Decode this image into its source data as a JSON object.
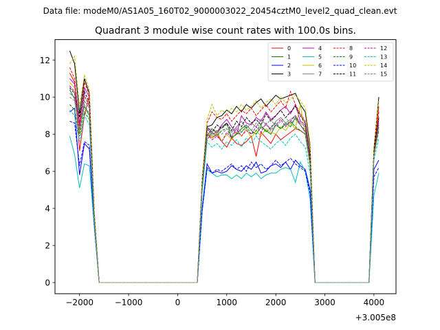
{
  "figure": {
    "suptitle": "Data file: modeM0/AS1A05_160T02_9000003022_20454cztM0_level2_quad_clean.evt",
    "offset_label": "+3.005e8"
  },
  "chart_data": {
    "type": "line",
    "title": "Quadrant 3 module wise count rates with 100.0s bins.",
    "xlabel": "",
    "ylabel": "",
    "x_offset": 300500000,
    "xlim": [
      -2500,
      4450
    ],
    "ylim": [
      -0.6,
      13.1
    ],
    "x_ticks": [
      -2000,
      -1000,
      0,
      1000,
      2000,
      3000,
      4000
    ],
    "x_tick_labels": [
      "−2000",
      "−1000",
      "0",
      "1000",
      "2000",
      "3000",
      "4000"
    ],
    "y_ticks": [
      0,
      2,
      4,
      6,
      8,
      10,
      12
    ],
    "y_tick_labels": [
      "0",
      "2",
      "4",
      "6",
      "8",
      "10",
      "12"
    ],
    "grid": false,
    "legend_position": "top-right",
    "legend_columns": 4,
    "x": [
      -2200,
      -2100,
      -2000,
      -1900,
      -1800,
      -1700,
      -1600,
      -1500,
      -1400,
      -1300,
      -1200,
      -1100,
      -1000,
      -900,
      -800,
      -700,
      -600,
      -500,
      -400,
      -300,
      -200,
      -100,
      0,
      100,
      200,
      300,
      400,
      500,
      600,
      700,
      800,
      900,
      1000,
      1100,
      1200,
      1300,
      1400,
      1500,
      1600,
      1700,
      1800,
      1900,
      2000,
      2100,
      2200,
      2300,
      2400,
      2500,
      2600,
      2700,
      2800,
      2900,
      3000,
      3100,
      3200,
      3300,
      3400,
      3500,
      3600,
      3700,
      3800,
      3900,
      4000,
      4100
    ],
    "series": [
      {
        "name": "0",
        "color": "#ff0000",
        "dash": "solid",
        "values": [
          11.3,
          10.8,
          7.1,
          9.0,
          10.1,
          3.5,
          0,
          0,
          0,
          0,
          0,
          0,
          0,
          0,
          0,
          0,
          0,
          0,
          0,
          0,
          0,
          0,
          0,
          0,
          0,
          0,
          0,
          5.2,
          8.0,
          7.8,
          8.0,
          7.6,
          7.3,
          7.8,
          7.5,
          7.4,
          7.6,
          7.9,
          6.8,
          8.1,
          7.8,
          7.5,
          8.0,
          7.7,
          7.9,
          8.1,
          8.3,
          8.2,
          8.0,
          6.5,
          0,
          0,
          0,
          0,
          0,
          0,
          0,
          0,
          0,
          0,
          0,
          0,
          7.0,
          9.5
        ]
      },
      {
        "name": "1",
        "color": "#008000",
        "dash": "solid",
        "values": [
          10.4,
          9.9,
          8.2,
          9.5,
          9.0,
          3.6,
          0,
          0,
          0,
          0,
          0,
          0,
          0,
          0,
          0,
          0,
          0,
          0,
          0,
          0,
          0,
          0,
          0,
          0,
          0,
          0,
          0,
          5.3,
          7.9,
          8.3,
          8.1,
          8.4,
          8.6,
          7.8,
          8.0,
          8.3,
          8.5,
          8.2,
          8.0,
          8.4,
          8.2,
          8.0,
          8.5,
          8.3,
          8.6,
          8.4,
          8.9,
          8.5,
          8.1,
          6.4,
          0,
          0,
          0,
          0,
          0,
          0,
          0,
          0,
          0,
          0,
          0,
          0,
          7.1,
          8.4
        ]
      },
      {
        "name": "2",
        "color": "#0000ff",
        "dash": "solid",
        "values": [
          9.2,
          9.4,
          5.8,
          7.5,
          7.2,
          3.2,
          0,
          0,
          0,
          0,
          0,
          0,
          0,
          0,
          0,
          0,
          0,
          0,
          0,
          0,
          0,
          0,
          0,
          0,
          0,
          0,
          0,
          4.0,
          6.4,
          5.9,
          6.0,
          5.9,
          6.0,
          6.3,
          6.1,
          6.0,
          6.3,
          6.1,
          6.5,
          5.9,
          6.0,
          6.3,
          6.4,
          6.2,
          6.5,
          6.1,
          6.6,
          6.3,
          6.1,
          5.0,
          0,
          0,
          0,
          0,
          0,
          0,
          0,
          0,
          0,
          0,
          0,
          0,
          6.1,
          6.6
        ]
      },
      {
        "name": "3",
        "color": "#000000",
        "dash": "solid",
        "values": [
          12.5,
          11.8,
          9.1,
          11.0,
          10.2,
          3.8,
          0,
          0,
          0,
          0,
          0,
          0,
          0,
          0,
          0,
          0,
          0,
          0,
          0,
          0,
          0,
          0,
          0,
          0,
          0,
          0,
          0,
          5.6,
          8.4,
          8.5,
          8.9,
          9.0,
          9.3,
          9.1,
          9.5,
          9.2,
          9.6,
          9.4,
          9.7,
          9.9,
          9.5,
          9.8,
          10.1,
          9.9,
          10.0,
          10.1,
          10.2,
          9.6,
          9.2,
          7.3,
          0,
          0,
          0,
          0,
          0,
          0,
          0,
          0,
          0,
          0,
          0,
          0,
          7.2,
          10.0
        ]
      },
      {
        "name": "4",
        "color": "#bf00bf",
        "dash": "solid",
        "values": [
          11.0,
          10.7,
          8.6,
          10.5,
          10.0,
          3.6,
          0,
          0,
          0,
          0,
          0,
          0,
          0,
          0,
          0,
          0,
          0,
          0,
          0,
          0,
          0,
          0,
          0,
          0,
          0,
          0,
          0,
          5.4,
          8.3,
          8.0,
          8.1,
          8.5,
          8.8,
          8.4,
          8.0,
          9.0,
          8.6,
          8.5,
          8.9,
          8.7,
          9.2,
          8.8,
          9.0,
          9.3,
          9.5,
          9.1,
          9.6,
          8.7,
          8.5,
          6.7,
          0,
          0,
          0,
          0,
          0,
          0,
          0,
          0,
          0,
          0,
          0,
          0,
          7.0,
          8.8
        ]
      },
      {
        "name": "5",
        "color": "#00bfbf",
        "dash": "solid",
        "values": [
          7.9,
          6.9,
          5.1,
          6.4,
          6.3,
          3.0,
          0,
          0,
          0,
          0,
          0,
          0,
          0,
          0,
          0,
          0,
          0,
          0,
          0,
          0,
          0,
          0,
          0,
          0,
          0,
          0,
          0,
          3.8,
          6.1,
          5.9,
          5.7,
          5.8,
          5.8,
          5.6,
          5.8,
          5.6,
          5.9,
          5.7,
          5.9,
          5.6,
          5.8,
          5.9,
          5.9,
          6.1,
          6.2,
          6.1,
          5.4,
          6.5,
          6.0,
          4.5,
          0,
          0,
          0,
          0,
          0,
          0,
          0,
          0,
          0,
          0,
          0,
          0,
          4.7,
          5.9
        ]
      },
      {
        "name": "6",
        "color": "#bfbf00",
        "dash": "solid",
        "values": [
          10.8,
          10.5,
          8.0,
          10.0,
          9.6,
          3.4,
          0,
          0,
          0,
          0,
          0,
          0,
          0,
          0,
          0,
          0,
          0,
          0,
          0,
          0,
          0,
          0,
          0,
          0,
          0,
          0,
          0,
          5.2,
          8.1,
          7.8,
          8.2,
          7.6,
          8.0,
          7.7,
          8.1,
          7.9,
          8.3,
          7.8,
          8.2,
          7.9,
          8.3,
          8.1,
          8.0,
          8.4,
          8.2,
          8.6,
          8.3,
          9.6,
          8.0,
          6.3,
          0,
          0,
          0,
          0,
          0,
          0,
          0,
          0,
          0,
          0,
          0,
          0,
          6.8,
          8.3
        ]
      },
      {
        "name": "7",
        "color": "#808080",
        "dash": "solid",
        "values": [
          10.2,
          10.0,
          8.4,
          9.8,
          9.4,
          3.5,
          0,
          0,
          0,
          0,
          0,
          0,
          0,
          0,
          0,
          0,
          0,
          0,
          0,
          0,
          0,
          0,
          0,
          0,
          0,
          0,
          0,
          5.3,
          8.2,
          8.3,
          8.0,
          8.4,
          8.5,
          8.1,
          8.4,
          8.7,
          8.3,
          8.6,
          8.4,
          8.8,
          8.5,
          8.3,
          8.7,
          8.9,
          8.6,
          8.8,
          9.0,
          8.6,
          8.4,
          6.6,
          0,
          0,
          0,
          0,
          0,
          0,
          0,
          0,
          0,
          0,
          0,
          0,
          7.0,
          8.6
        ]
      },
      {
        "name": "8",
        "color": "#ff0000",
        "dash": "dashed",
        "values": [
          11.6,
          11.0,
          8.5,
          10.8,
          10.1,
          3.7,
          0,
          0,
          0,
          0,
          0,
          0,
          0,
          0,
          0,
          0,
          0,
          0,
          0,
          0,
          0,
          0,
          0,
          0,
          0,
          0,
          0,
          5.5,
          8.6,
          9.2,
          8.9,
          8.8,
          9.1,
          8.7,
          9.0,
          9.3,
          9.1,
          9.4,
          9.0,
          9.3,
          9.6,
          9.2,
          9.5,
          9.8,
          9.4,
          10.3,
          9.6,
          9.1,
          8.7,
          6.9,
          0,
          0,
          0,
          0,
          0,
          0,
          0,
          0,
          0,
          0,
          0,
          0,
          7.1,
          9.2
        ]
      },
      {
        "name": "9",
        "color": "#008000",
        "dash": "dashed",
        "values": [
          9.6,
          9.3,
          7.9,
          9.2,
          8.8,
          3.3,
          0,
          0,
          0,
          0,
          0,
          0,
          0,
          0,
          0,
          0,
          0,
          0,
          0,
          0,
          0,
          0,
          0,
          0,
          0,
          0,
          0,
          5.0,
          7.7,
          8.1,
          7.9,
          8.2,
          8.3,
          7.8,
          8.0,
          8.1,
          8.4,
          8.0,
          8.2,
          8.5,
          8.1,
          8.4,
          8.6,
          8.3,
          8.5,
          8.7,
          8.4,
          8.2,
          8.0,
          6.3,
          0,
          0,
          0,
          0,
          0,
          0,
          0,
          0,
          0,
          0,
          0,
          0,
          6.9,
          8.2
        ]
      },
      {
        "name": "10",
        "color": "#0000ff",
        "dash": "dashed",
        "values": [
          8.7,
          8.6,
          6.3,
          7.6,
          7.4,
          3.1,
          0,
          0,
          0,
          0,
          0,
          0,
          0,
          0,
          0,
          0,
          0,
          0,
          0,
          0,
          0,
          0,
          0,
          0,
          0,
          0,
          0,
          3.9,
          6.2,
          5.9,
          6.1,
          6.0,
          6.2,
          6.4,
          6.1,
          6.3,
          6.0,
          6.5,
          6.2,
          6.4,
          6.1,
          6.3,
          6.6,
          6.3,
          6.5,
          6.7,
          6.4,
          6.2,
          6.0,
          4.8,
          0,
          0,
          0,
          0,
          0,
          0,
          0,
          0,
          0,
          0,
          0,
          0,
          5.7,
          6.2
        ]
      },
      {
        "name": "11",
        "color": "#000000",
        "dash": "dashed",
        "values": [
          10.5,
          10.2,
          8.9,
          10.3,
          9.7,
          3.6,
          0,
          0,
          0,
          0,
          0,
          0,
          0,
          0,
          0,
          0,
          0,
          0,
          0,
          0,
          0,
          0,
          0,
          0,
          0,
          0,
          0,
          5.4,
          8.4,
          8.1,
          8.5,
          8.3,
          8.6,
          8.2,
          8.7,
          8.4,
          8.9,
          8.6,
          8.8,
          8.5,
          9.1,
          8.7,
          9.0,
          9.3,
          8.9,
          9.2,
          9.5,
          9.0,
          8.6,
          6.8,
          0,
          0,
          0,
          0,
          0,
          0,
          0,
          0,
          0,
          0,
          0,
          0,
          7.1,
          8.9
        ]
      },
      {
        "name": "12",
        "color": "#bf00bf",
        "dash": "dashed",
        "values": [
          10.6,
          10.3,
          8.3,
          10.1,
          9.5,
          3.5,
          0,
          0,
          0,
          0,
          0,
          0,
          0,
          0,
          0,
          0,
          0,
          0,
          0,
          0,
          0,
          0,
          0,
          0,
          0,
          0,
          0,
          5.3,
          8.0,
          7.7,
          7.9,
          7.6,
          8.1,
          7.8,
          8.3,
          7.9,
          8.2,
          8.0,
          8.4,
          8.1,
          8.6,
          8.2,
          8.5,
          8.8,
          8.4,
          8.7,
          9.0,
          8.5,
          8.2,
          6.5,
          0,
          0,
          0,
          0,
          0,
          0,
          0,
          0,
          0,
          0,
          0,
          0,
          6.9,
          8.5
        ]
      },
      {
        "name": "13",
        "color": "#00bfbf",
        "dash": "dashed",
        "values": [
          9.3,
          9.0,
          7.6,
          9.0,
          8.5,
          3.3,
          0,
          0,
          0,
          0,
          0,
          0,
          0,
          0,
          0,
          0,
          0,
          0,
          0,
          0,
          0,
          0,
          0,
          0,
          0,
          0,
          0,
          4.9,
          7.6,
          7.3,
          7.5,
          7.2,
          7.6,
          7.4,
          7.7,
          7.3,
          7.8,
          7.5,
          7.9,
          7.6,
          7.4,
          7.2,
          7.5,
          7.7,
          7.4,
          7.8,
          8.0,
          7.6,
          7.3,
          5.9,
          0,
          0,
          0,
          0,
          0,
          0,
          0,
          0,
          0,
          0,
          0,
          0,
          6.6,
          7.8
        ]
      },
      {
        "name": "14",
        "color": "#bfbf00",
        "dash": "dashed",
        "values": [
          11.8,
          12.2,
          9.5,
          11.2,
          10.4,
          3.8,
          0,
          0,
          0,
          0,
          0,
          0,
          0,
          0,
          0,
          0,
          0,
          0,
          0,
          0,
          0,
          0,
          0,
          0,
          0,
          0,
          0,
          5.6,
          8.8,
          9.6,
          9.0,
          9.3,
          9.1,
          9.4,
          9.2,
          9.6,
          9.3,
          9.5,
          9.8,
          9.4,
          9.7,
          9.9,
          9.6,
          10.0,
          9.7,
          9.9,
          10.1,
          9.8,
          9.4,
          7.5,
          0,
          0,
          0,
          0,
          0,
          0,
          0,
          0,
          0,
          0,
          0,
          0,
          7.3,
          9.8
        ]
      },
      {
        "name": "15",
        "color": "#808080",
        "dash": "dashed",
        "values": [
          10.0,
          9.8,
          8.1,
          9.6,
          9.1,
          3.4,
          0,
          0,
          0,
          0,
          0,
          0,
          0,
          0,
          0,
          0,
          0,
          0,
          0,
          0,
          0,
          0,
          0,
          0,
          0,
          0,
          0,
          5.2,
          8.1,
          7.9,
          8.2,
          8.0,
          8.3,
          7.9,
          8.4,
          8.1,
          8.5,
          8.2,
          8.6,
          8.3,
          8.5,
          8.8,
          8.4,
          8.7,
          8.9,
          8.6,
          8.8,
          8.5,
          8.1,
          6.4,
          0,
          0,
          0,
          0,
          0,
          0,
          0,
          0,
          0,
          0,
          0,
          0,
          6.8,
          8.4
        ]
      }
    ]
  }
}
